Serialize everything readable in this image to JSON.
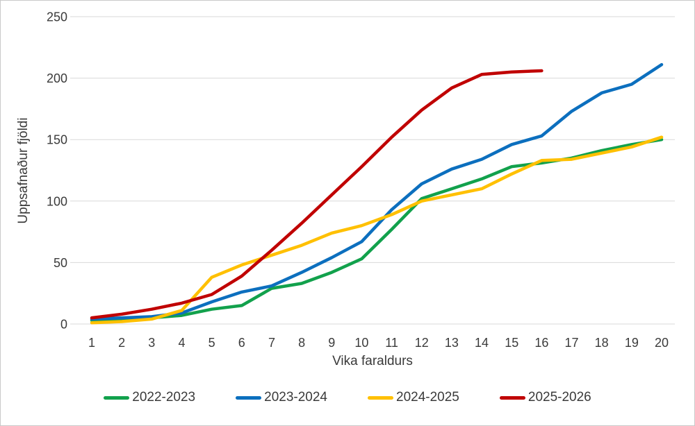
{
  "figure": {
    "background": "#ffffff",
    "border_color": "#c9c9c9"
  },
  "chart_data": {
    "type": "line",
    "title": "",
    "xlabel": "Vika faraldurs",
    "ylabel": "Uppsafnaður fjöldi",
    "x": [
      1,
      2,
      3,
      4,
      5,
      6,
      7,
      8,
      9,
      10,
      11,
      12,
      13,
      14,
      15,
      16,
      17,
      18,
      19,
      20
    ],
    "ylim": [
      0,
      250
    ],
    "yticks": [
      0,
      50,
      100,
      150,
      200,
      250
    ],
    "grid": "horizontal",
    "gridline_color": "#d9d9d9",
    "text_color": "#3a3a3a",
    "legend_position": "bottom",
    "series": [
      {
        "name": "2022-2023",
        "color": "#12a14c",
        "values": [
          3,
          4,
          5,
          7,
          12,
          15,
          29,
          33,
          42,
          53,
          77,
          102,
          110,
          118,
          128,
          131,
          135,
          141,
          146,
          150
        ]
      },
      {
        "name": "2023-2024",
        "color": "#0c6fbe",
        "values": [
          4,
          5,
          6,
          9,
          18,
          26,
          31,
          42,
          54,
          67,
          93,
          114,
          126,
          134,
          146,
          153,
          173,
          188,
          195,
          211
        ]
      },
      {
        "name": "2024-2025",
        "color": "#ffc000",
        "values": [
          1,
          2,
          4,
          11,
          38,
          48,
          56,
          64,
          74,
          80,
          89,
          100,
          105,
          110,
          122,
          133,
          134,
          139,
          144,
          152
        ]
      },
      {
        "name": "2025-2026",
        "color": "#c00000",
        "values": [
          5,
          8,
          12,
          17,
          24,
          39,
          60,
          82,
          105,
          128,
          152,
          174,
          192,
          203,
          205,
          206
        ]
      }
    ]
  }
}
